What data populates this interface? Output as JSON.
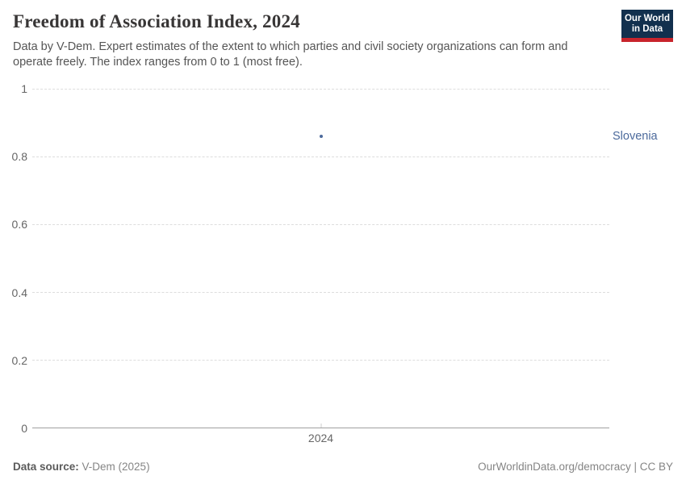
{
  "header": {
    "title": "Freedom of Association Index, 2024",
    "subtitle": "Data by V-Dem. Expert estimates of the extent to which parties and civil society organizations can form and operate freely. The index ranges from 0 to 1 (most free).",
    "logo": {
      "line1": "Our World",
      "line2": "in Data"
    }
  },
  "chart_data": {
    "type": "scatter",
    "title": "Freedom of Association Index, 2024",
    "entity": "Slovenia",
    "series": [
      {
        "name": "Slovenia",
        "color": "#4C6A9C",
        "points": [
          {
            "x": 2024,
            "y": 0.86
          }
        ]
      }
    ],
    "ylim": [
      0,
      1
    ],
    "yticks": [
      0,
      0.2,
      0.4,
      0.6,
      0.8,
      1
    ],
    "xticks": [
      "2024"
    ],
    "x_tick_pct": 50,
    "grid": "horizontal-dashed",
    "gridline_color": "#dddddd",
    "axis_color": "#a1a1a1",
    "legend_position": "right-of-point"
  },
  "colors": {
    "brand_navy": "#12304e",
    "brand_red": "#c8242c",
    "accent_blue": "#4C6A9C",
    "title_text": "#383636",
    "subtitle_text": "#555555",
    "axis_text": "#666666",
    "footer_text": "#858585"
  },
  "footer": {
    "datasource_label": "Data source:",
    "datasource_value": " V-Dem (2025)",
    "right_text": "OurWorldinData.org/democracy | CC BY"
  }
}
